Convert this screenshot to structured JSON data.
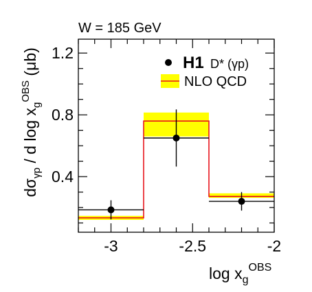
{
  "chart_data": {
    "type": "histogram",
    "annotation_top": "W = 185 GeV",
    "ylabel": {
      "d": "d",
      "sigma": "σ",
      "sub": "γp",
      "mid": " / d log x",
      "sub2": "g",
      "sup": "OBS",
      "unit": " (μb)"
    },
    "xlabel": {
      "main": "log x",
      "sub": "g",
      "sup": "OBS"
    },
    "xlim": [
      -3.2,
      -2.0
    ],
    "ylim": [
      0.04,
      1.29
    ],
    "x_ticks": [
      {
        "value": -3.0,
        "label": "-3"
      },
      {
        "value": -2.5,
        "label": "-2.5"
      },
      {
        "value": -2.0,
        "label": "-2"
      }
    ],
    "y_ticks": [
      {
        "value": 0.4,
        "label": "0.4"
      },
      {
        "value": 0.8,
        "label": "0.8"
      },
      {
        "value": 1.2,
        "label": "1.2"
      }
    ],
    "x_minor_step": 0.1,
    "y_minor_step": 0.1,
    "bins": [
      {
        "low": -3.2,
        "high": -2.8
      },
      {
        "low": -2.8,
        "high": -2.4
      },
      {
        "low": -2.4,
        "high": -2.0
      }
    ],
    "series": [
      {
        "name": "H1",
        "name_extra": "D* (γp)",
        "kind": "data",
        "color": "#000000",
        "values": [
          0.185,
          0.65,
          0.24
        ],
        "x_points": [
          -3.0,
          -2.6,
          -2.2
        ],
        "err_low": [
          0.062,
          0.185,
          0.06
        ],
        "err_high": [
          0.062,
          0.185,
          0.06
        ]
      },
      {
        "name": "NLO QCD",
        "kind": "band",
        "line_color": "#e8131c",
        "band_color": "#ffff00",
        "values": [
          0.133,
          0.76,
          0.272
        ],
        "band_low": [
          0.12,
          0.66,
          0.262
        ],
        "band_high": [
          0.146,
          0.815,
          0.292
        ]
      }
    ],
    "legend": {
      "position": "top-right"
    },
    "grid": false
  }
}
